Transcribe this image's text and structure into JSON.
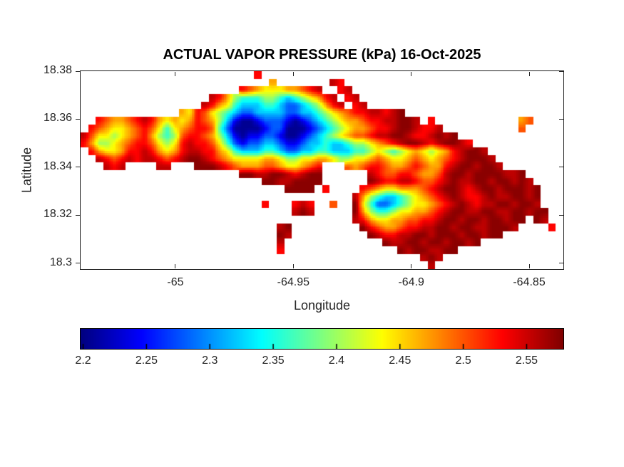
{
  "figure": {
    "title": "ACTUAL VAPOR PRESSURE (kPa) 16-Oct-2025",
    "background": "#ffffff"
  },
  "chart_data": {
    "type": "heatmap",
    "title": "ACTUAL VAPOR PRESSURE (kPa) 16-Oct-2025",
    "xlabel": "Longitude",
    "ylabel": "Latitude",
    "x_range": [
      -65.0402,
      -64.8355
    ],
    "y_range": [
      18.2976,
      18.38
    ],
    "x_ticks": [
      -65,
      -64.95,
      -64.9,
      -64.85
    ],
    "x_tick_labels": [
      "-65",
      "-64.95",
      "-64.9",
      "-64.85"
    ],
    "y_ticks": [
      18.38,
      18.36,
      18.34,
      18.32,
      18.3
    ],
    "y_tick_labels": [
      "18.38",
      "18.36",
      "18.34",
      "18.32",
      "18.3"
    ],
    "grid_lines": false,
    "colormap": "jet",
    "colorbar": {
      "orientation": "horizontal",
      "min": 2.198,
      "max": 2.579,
      "ticks": [
        2.2,
        2.25,
        2.3,
        2.35,
        2.4,
        2.45,
        2.5,
        2.55
      ],
      "tick_labels": [
        "2.2",
        "2.25",
        "2.3",
        "2.35",
        "2.4",
        "2.45",
        "2.5",
        "2.55"
      ],
      "units": "kPa"
    },
    "grid": {
      "cols": 64,
      "rows": 26,
      "note": "Actual vapor pressure (kPa) on a lon/lat grid over the island; row 0 = north (lat 18.38), col 0 = west (lon -65.04). Run-length encoded: optional count then char; '.' = ocean / no data.",
      "value_key": {
        "a": 2.205,
        "b": 2.24,
        "c": 2.28,
        "d": 2.32,
        "e": 2.36,
        "f": 2.4,
        "g": 2.44,
        "h": 2.47,
        "i": 2.5,
        "j": 2.53,
        "k": 2.555,
        "l": 2.575
      },
      "rows_encoded": [
        "23.j40.",
        "25.h7.kj29.",
        "21.jihggghhijk2.jk28.",
        "17.kjhfeeeffedefghjk.jk27.",
        "16.kjhgedddeedccdefhjk.jk26.",
        "13.hgjigfedccddddccddefghijjkkjkl21.",
        "2.jihhijkjhghghjihfdbaabcccbabcdefghhijjkkllk.j11.hi4.",
        ".jihgghijigeghijjiecaaaabccaaabcdefghhijjkllkjjk10.i5.",
        "kiggfghijhfefijjihfdbabbccbaabcdefghiijkkllkjjklkl14.",
        "jhffghijjigfgjkjjigecbccddcbbcddeddeffghijkllkjkllkj12.",
        ".jhgghjjkjhghjkkjjhgedddeedccddeedddeefgfefghgfghjkllk10.",
        "2.kjijkjkkjijkllkjihgggghhgffgghhgffgghihgghihghijklllk9.",
        "3.kjk4.kk3.lllkjihhhiihgghij3.ihijjihhijihhjkllkllk8.",
        "21.llkkllkjkll6.kjiijjihhikllkllllkkl5.",
        "24.llkkllll6.lkjjkkjiijklkkllkllklk4.",
        "27.llll.j4.jihgghhhijkllkjkllklllkl3.",
        "36.khfeddefghijklkjjklkkllkl3.",
        "24.j3.jkj2.i2.lgeccdefgghijklkjkkllkllk3.",
        "28.klk5.lhfeefgghhijkllkkllkkllkll2.",
        "36.kjhgghhiijjkllkllkllkll.lk2.",
        "26.kl9.ljihhijjkkllkllkklllk4.j.",
        "26.lk10.lkjjkkllklllkllkll8.",
        "26.k13.lkkllkllkllkl11.",
        "26.j15.lkllkkll14.",
        "45.klk16.",
        "46.k17."
      ]
    }
  },
  "colors": {
    "background": "#ffffff",
    "axis_box": "#1a1a1a",
    "tick_text": "#262626",
    "title_text": "#000000",
    "colorbar_border": "#000000"
  }
}
